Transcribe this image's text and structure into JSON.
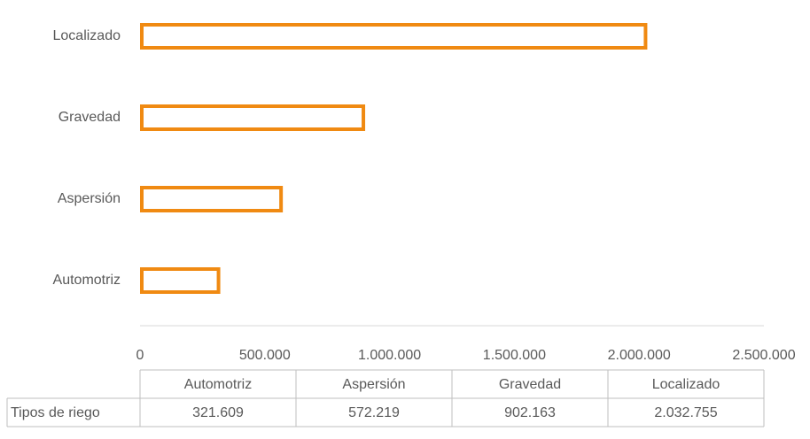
{
  "chart_data": {
    "type": "bar",
    "orientation": "horizontal",
    "categories": [
      "Automotriz",
      "Aspersión",
      "Gravedad",
      "Localizado"
    ],
    "series": [
      {
        "name": "Tipos de riego",
        "color": "#F08A12",
        "values": [
          321609,
          572219,
          902163,
          2032755
        ],
        "value_labels": [
          "321.609",
          "572.219",
          "902.163",
          "2.032.755"
        ]
      }
    ],
    "xlim": [
      0,
      2500000
    ],
    "xticks": [
      0,
      {
        "value": 500000,
        "label": "500.000"
      },
      {
        "value": 1000000,
        "label": "1.000.000"
      },
      {
        "value": 1500000,
        "label": "1.500.000"
      },
      {
        "value": 2000000,
        "label": "2.000.000"
      },
      {
        "value": 2500000,
        "label": "2.500.000"
      }
    ],
    "grid": false,
    "data_table": true
  }
}
